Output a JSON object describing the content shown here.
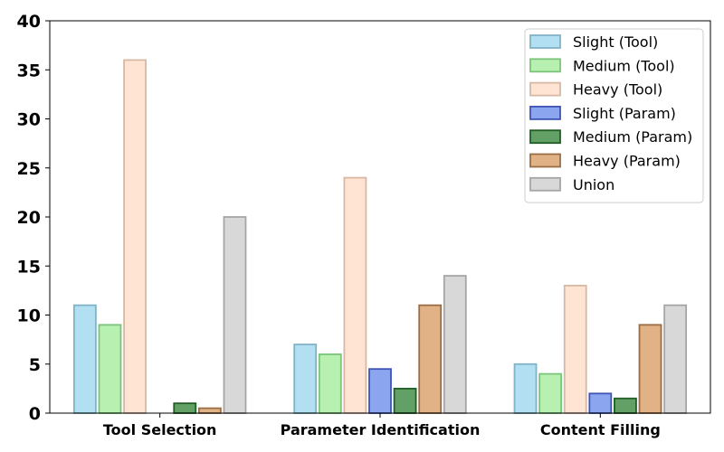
{
  "chart_data": {
    "type": "bar",
    "title": "",
    "xlabel": "",
    "ylabel": "",
    "ylim": [
      0,
      40
    ],
    "yticks": [
      0,
      5,
      10,
      15,
      20,
      25,
      30,
      35,
      40
    ],
    "categories": [
      "Tool Selection",
      "Parameter Identification",
      "Content Filling"
    ],
    "legend_position": "top-right",
    "grid": false,
    "series": [
      {
        "name": "Slight (Tool)",
        "values": [
          11,
          7,
          5
        ],
        "fill": "#b3dff2",
        "stroke": "#7fb3c6"
      },
      {
        "name": "Medium (Tool)",
        "values": [
          9,
          6,
          4
        ],
        "fill": "#b7f0b0",
        "stroke": "#7cc47c"
      },
      {
        "name": "Heavy (Tool)",
        "values": [
          36,
          24,
          13
        ],
        "fill": "#ffe3d3",
        "stroke": "#d7b8a5"
      },
      {
        "name": "Slight (Param)",
        "values": [
          0,
          4.5,
          2
        ],
        "fill": "#8ba5ee",
        "stroke": "#3e55b5"
      },
      {
        "name": "Medium (Param)",
        "values": [
          1,
          2.5,
          1.5
        ],
        "fill": "#62a066",
        "stroke": "#1f5e24"
      },
      {
        "name": "Heavy (Param)",
        "values": [
          0.5,
          11,
          9
        ],
        "fill": "#e2b287",
        "stroke": "#9a6d45"
      },
      {
        "name": "Union",
        "values": [
          20,
          14,
          11
        ],
        "fill": "#d8d8d8",
        "stroke": "#a5a5a5"
      }
    ]
  }
}
